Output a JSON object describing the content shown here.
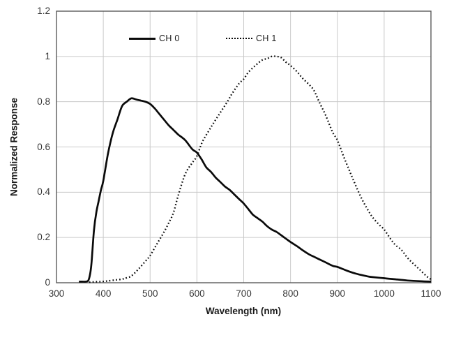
{
  "chart_data": {
    "type": "line",
    "title": "",
    "xlabel": "Wavelength (nm)",
    "ylabel": "Normalized Response",
    "xlim": [
      300,
      1100
    ],
    "ylim": [
      0,
      1.2
    ],
    "grid": true,
    "legend_position": "top-inside",
    "x_ticks": [
      300,
      400,
      500,
      600,
      700,
      800,
      900,
      1000,
      1100
    ],
    "x_tick_labels": [
      "300",
      "400",
      "500",
      "600",
      "700",
      "800",
      "900",
      "1000",
      "1100"
    ],
    "y_ticks": [
      0,
      0.2,
      0.4,
      0.6,
      0.8,
      1.0,
      1.2
    ],
    "y_tick_labels": [
      "0",
      "0.2",
      "0.4",
      "0.6",
      "0.8",
      "1",
      "1.2"
    ],
    "series": [
      {
        "name": "CH 0",
        "style": "solid",
        "color": "#0a0a0a",
        "points": [
          [
            348,
            0.005
          ],
          [
            355,
            0.005
          ],
          [
            362,
            0.005
          ],
          [
            368,
            0.01
          ],
          [
            372,
            0.04
          ],
          [
            375,
            0.09
          ],
          [
            380,
            0.23
          ],
          [
            385,
            0.31
          ],
          [
            390,
            0.36
          ],
          [
            395,
            0.41
          ],
          [
            400,
            0.45
          ],
          [
            410,
            0.57
          ],
          [
            420,
            0.66
          ],
          [
            430,
            0.72
          ],
          [
            440,
            0.78
          ],
          [
            450,
            0.8
          ],
          [
            460,
            0.815
          ],
          [
            470,
            0.81
          ],
          [
            480,
            0.805
          ],
          [
            490,
            0.8
          ],
          [
            500,
            0.79
          ],
          [
            510,
            0.77
          ],
          [
            520,
            0.745
          ],
          [
            530,
            0.72
          ],
          [
            540,
            0.695
          ],
          [
            550,
            0.675
          ],
          [
            560,
            0.655
          ],
          [
            575,
            0.63
          ],
          [
            590,
            0.59
          ],
          [
            600,
            0.575
          ],
          [
            610,
            0.545
          ],
          [
            620,
            0.51
          ],
          [
            630,
            0.49
          ],
          [
            640,
            0.465
          ],
          [
            650,
            0.445
          ],
          [
            660,
            0.425
          ],
          [
            670,
            0.41
          ],
          [
            680,
            0.39
          ],
          [
            690,
            0.37
          ],
          [
            700,
            0.35
          ],
          [
            710,
            0.325
          ],
          [
            720,
            0.3
          ],
          [
            730,
            0.285
          ],
          [
            740,
            0.27
          ],
          [
            750,
            0.25
          ],
          [
            760,
            0.235
          ],
          [
            770,
            0.225
          ],
          [
            780,
            0.21
          ],
          [
            790,
            0.195
          ],
          [
            800,
            0.18
          ],
          [
            815,
            0.16
          ],
          [
            825,
            0.145
          ],
          [
            840,
            0.125
          ],
          [
            850,
            0.115
          ],
          [
            860,
            0.105
          ],
          [
            875,
            0.09
          ],
          [
            890,
            0.075
          ],
          [
            900,
            0.07
          ],
          [
            915,
            0.058
          ],
          [
            925,
            0.05
          ],
          [
            940,
            0.04
          ],
          [
            950,
            0.035
          ],
          [
            965,
            0.028
          ],
          [
            975,
            0.025
          ],
          [
            1000,
            0.02
          ],
          [
            1025,
            0.015
          ],
          [
            1050,
            0.01
          ],
          [
            1075,
            0.007
          ],
          [
            1100,
            0.005
          ]
        ]
      },
      {
        "name": "CH 1",
        "style": "dotted",
        "color": "#0a0a0a",
        "points": [
          [
            370,
            0.002
          ],
          [
            380,
            0.004
          ],
          [
            400,
            0.006
          ],
          [
            410,
            0.008
          ],
          [
            425,
            0.012
          ],
          [
            440,
            0.016
          ],
          [
            450,
            0.022
          ],
          [
            460,
            0.03
          ],
          [
            475,
            0.06
          ],
          [
            490,
            0.095
          ],
          [
            500,
            0.12
          ],
          [
            510,
            0.155
          ],
          [
            520,
            0.19
          ],
          [
            530,
            0.225
          ],
          [
            540,
            0.265
          ],
          [
            550,
            0.31
          ],
          [
            560,
            0.385
          ],
          [
            575,
            0.48
          ],
          [
            590,
            0.53
          ],
          [
            600,
            0.56
          ],
          [
            611,
            0.62
          ],
          [
            625,
            0.67
          ],
          [
            640,
            0.72
          ],
          [
            665,
            0.8
          ],
          [
            675,
            0.835
          ],
          [
            690,
            0.88
          ],
          [
            700,
            0.9
          ],
          [
            710,
            0.93
          ],
          [
            725,
            0.96
          ],
          [
            740,
            0.985
          ],
          [
            750,
            0.99
          ],
          [
            760,
            1.0
          ],
          [
            770,
            1.0
          ],
          [
            780,
            0.995
          ],
          [
            790,
            0.975
          ],
          [
            800,
            0.96
          ],
          [
            815,
            0.93
          ],
          [
            825,
            0.905
          ],
          [
            840,
            0.875
          ],
          [
            850,
            0.85
          ],
          [
            861,
            0.8
          ],
          [
            875,
            0.74
          ],
          [
            890,
            0.665
          ],
          [
            900,
            0.63
          ],
          [
            915,
            0.55
          ],
          [
            925,
            0.5
          ],
          [
            933,
            0.46
          ],
          [
            950,
            0.38
          ],
          [
            963,
            0.33
          ],
          [
            975,
            0.29
          ],
          [
            990,
            0.255
          ],
          [
            1000,
            0.235
          ],
          [
            1015,
            0.19
          ],
          [
            1025,
            0.165
          ],
          [
            1037,
            0.145
          ],
          [
            1050,
            0.11
          ],
          [
            1062,
            0.085
          ],
          [
            1075,
            0.06
          ],
          [
            1090,
            0.03
          ],
          [
            1100,
            0.015
          ]
        ]
      }
    ],
    "colors": {
      "grid": "#c9c9c9",
      "plot_border": "#5a5a5a",
      "curve": "#0a0a0a",
      "tick_text": "#373737"
    }
  },
  "legend": {
    "items": [
      {
        "label": "CH 0",
        "style": "solid"
      },
      {
        "label": "CH 1",
        "style": "dotted"
      }
    ]
  },
  "axes": {
    "x_title": "Wavelength (nm)",
    "y_title": "Normalized Response"
  }
}
